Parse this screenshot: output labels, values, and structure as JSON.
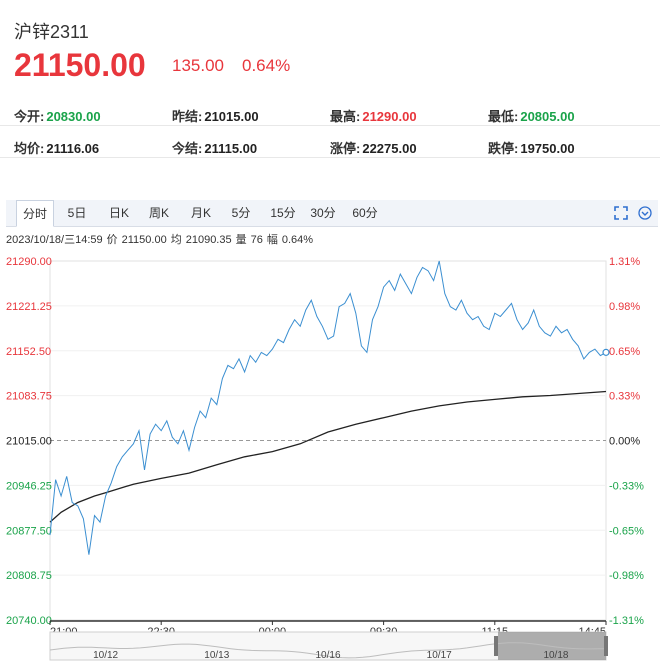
{
  "header": {
    "title": "沪锌2311",
    "price": "21150.00",
    "change": "135.00",
    "change_pct": "0.64%"
  },
  "stats": [
    {
      "label": "今开:",
      "value": "20830.00",
      "color": "green"
    },
    {
      "label": "昨结:",
      "value": "21015.00",
      "color": "dark"
    },
    {
      "label": "最高:",
      "value": "21290.00",
      "color": "red"
    },
    {
      "label": "最低:",
      "value": "20805.00",
      "color": "green"
    },
    {
      "label": "均价:",
      "value": "21116.06",
      "color": "dark"
    },
    {
      "label": "今结:",
      "value": "21115.00",
      "color": "dark"
    },
    {
      "label": "涨停:",
      "value": "22275.00",
      "color": "dark"
    },
    {
      "label": "跌停:",
      "value": "19750.00",
      "color": "dark"
    }
  ],
  "tabs": [
    "分时",
    "5日",
    "日K",
    "周K",
    "月K",
    "5分",
    "15分",
    "30分",
    "60分"
  ],
  "active_tab": "分时",
  "icons": [
    "fullscreen-icon",
    "chevron-down-icon"
  ],
  "info_line": {
    "datetime": "2023/10/18/三14:59",
    "price_label": "价",
    "price": "21150.00",
    "avg_label": "均",
    "avg": "21090.35",
    "vol_label": "量",
    "vol": "76",
    "amp_label": "幅",
    "amp": "0.64%"
  },
  "colors": {
    "up": "#e8363c",
    "down": "#1aa34a",
    "price_line": "#3b8fd1",
    "avg_line": "#222222"
  },
  "chart_data": {
    "type": "line",
    "ylim": [
      20740.0,
      21290.0
    ],
    "reference": 21015.0,
    "y_ticks_left": [
      "21290.00",
      "21221.25",
      "21152.50",
      "21083.75",
      "21015.00",
      "20946.25",
      "20877.50",
      "20808.75",
      "20740.00"
    ],
    "y_ticks_right": [
      "1.31%",
      "0.98%",
      "0.65%",
      "0.33%",
      "0.00%",
      "-0.33%",
      "-0.65%",
      "-0.98%",
      "-1.31%"
    ],
    "x_ticks": [
      "21:00",
      "22:30",
      "00:00",
      "09:30",
      "11:15",
      "14:45"
    ],
    "navigator_labels": [
      "10/12",
      "10/13",
      "10/16",
      "10/17",
      "10/18"
    ],
    "series": [
      {
        "name": "价",
        "x": [
          0,
          0.01,
          0.02,
          0.03,
          0.04,
          0.05,
          0.06,
          0.07,
          0.08,
          0.09,
          0.1,
          0.11,
          0.12,
          0.13,
          0.14,
          0.15,
          0.16,
          0.17,
          0.18,
          0.19,
          0.2,
          0.21,
          0.22,
          0.23,
          0.24,
          0.25,
          0.26,
          0.27,
          0.28,
          0.29,
          0.3,
          0.31,
          0.32,
          0.33,
          0.34,
          0.35,
          0.36,
          0.37,
          0.38,
          0.39,
          0.4,
          0.41,
          0.42,
          0.43,
          0.44,
          0.45,
          0.46,
          0.47,
          0.48,
          0.49,
          0.5,
          0.51,
          0.52,
          0.53,
          0.54,
          0.55,
          0.56,
          0.57,
          0.58,
          0.59,
          0.6,
          0.61,
          0.62,
          0.63,
          0.64,
          0.65,
          0.66,
          0.67,
          0.68,
          0.69,
          0.7,
          0.71,
          0.72,
          0.73,
          0.74,
          0.75,
          0.76,
          0.77,
          0.78,
          0.79,
          0.8,
          0.81,
          0.82,
          0.83,
          0.84,
          0.85,
          0.86,
          0.87,
          0.88,
          0.89,
          0.9,
          0.91,
          0.92,
          0.93,
          0.94,
          0.95,
          0.96,
          0.97,
          0.98,
          0.99,
          1.0
        ],
        "values": [
          20870,
          20955,
          20930,
          20960,
          20920,
          20915,
          20895,
          20840,
          20900,
          20890,
          20930,
          20950,
          20975,
          20990,
          21000,
          21010,
          21030,
          20970,
          21025,
          21040,
          21030,
          21045,
          21020,
          21010,
          21030,
          21000,
          21035,
          21060,
          21050,
          21080,
          21070,
          21110,
          21130,
          21125,
          21140,
          21120,
          21145,
          21135,
          21150,
          21145,
          21155,
          21170,
          21165,
          21185,
          21200,
          21190,
          21215,
          21230,
          21205,
          21190,
          21170,
          21175,
          21220,
          21225,
          21240,
          21210,
          21160,
          21150,
          21200,
          21220,
          21250,
          21260,
          21245,
          21270,
          21255,
          21240,
          21265,
          21280,
          21275,
          21260,
          21290,
          21240,
          21220,
          21215,
          21230,
          21210,
          21200,
          21205,
          21190,
          21185,
          21210,
          21205,
          21215,
          21225,
          21200,
          21185,
          21195,
          21215,
          21190,
          21180,
          21175,
          21190,
          21180,
          21185,
          21170,
          21160,
          21140,
          21150,
          21155,
          21145,
          21150
        ]
      },
      {
        "name": "均",
        "x": [
          0,
          0.02,
          0.05,
          0.08,
          0.1,
          0.15,
          0.2,
          0.25,
          0.3,
          0.35,
          0.4,
          0.45,
          0.5,
          0.55,
          0.6,
          0.65,
          0.7,
          0.75,
          0.8,
          0.85,
          0.9,
          0.95,
          1.0
        ],
        "values": [
          20890,
          20905,
          20920,
          20930,
          20935,
          20948,
          20957,
          20965,
          20978,
          20990,
          20998,
          21010,
          21028,
          21040,
          21050,
          21060,
          21068,
          21074,
          21078,
          21082,
          21084,
          21087,
          21090
        ]
      }
    ]
  }
}
